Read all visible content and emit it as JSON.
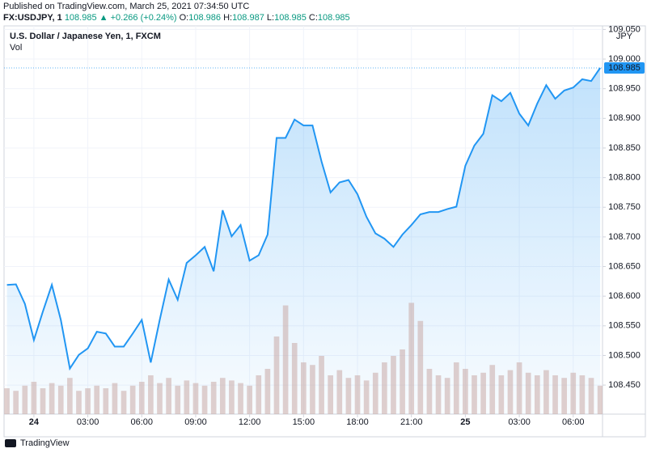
{
  "header": {
    "published": "Published on TradingView.com, March 25, 2021 07:34:50 UTC",
    "symbol": "FX:USDJPY, 1",
    "price": "108.985",
    "arrow": "▲",
    "change": "+0.266 (+0.24%)",
    "o_label": "O:",
    "o": "108.986",
    "h_label": "H:",
    "h": "108.987",
    "l_label": "L:",
    "l": "108.985",
    "c_label": "C:",
    "c": "108.985"
  },
  "chart_data": {
    "type": "area",
    "legend_title": "U.S. Dollar / Japanese Yen, 1, FXCM",
    "currency": "JPY",
    "x": [
      -1.5,
      -1,
      -0.5,
      0,
      0.5,
      1,
      1.5,
      2,
      2.5,
      3,
      3.5,
      4,
      4.5,
      5,
      5.5,
      6,
      6.5,
      7,
      7.5,
      8,
      8.5,
      9,
      9.5,
      10,
      10.5,
      11,
      11.5,
      12,
      12.5,
      13,
      13.5,
      14,
      14.5,
      15,
      15.5,
      16,
      16.5,
      17,
      17.5,
      18,
      18.5,
      19,
      19.5,
      20,
      20.5,
      21,
      21.5,
      22,
      22.5,
      23,
      23.5,
      24,
      24.5,
      25,
      25.5,
      26,
      26.5,
      27,
      27.5,
      28,
      28.5,
      29,
      29.5,
      30,
      30.5,
      31,
      31.5
    ],
    "series": [
      {
        "name": "U.S. Dollar / Japanese Yen",
        "color": "#2196f3",
        "values": [
          108.619,
          108.62,
          108.587,
          108.526,
          108.574,
          108.619,
          108.56,
          108.478,
          108.501,
          108.512,
          108.54,
          108.537,
          108.515,
          108.515,
          108.537,
          108.56,
          108.488,
          108.56,
          108.628,
          108.594,
          108.656,
          108.669,
          108.683,
          108.642,
          108.745,
          108.701,
          108.72,
          108.66,
          108.669,
          108.704,
          108.867,
          108.867,
          108.898,
          108.888,
          108.888,
          108.827,
          108.775,
          108.792,
          108.796,
          108.772,
          108.734,
          108.706,
          108.697,
          108.683,
          108.704,
          108.72,
          108.738,
          108.742,
          108.742,
          108.747,
          108.751,
          108.82,
          108.854,
          108.874,
          108.939,
          108.929,
          108.943,
          108.908,
          108.888,
          108.925,
          108.956,
          108.933,
          108.947,
          108.952,
          108.966,
          108.963,
          108.985
        ]
      },
      {
        "name": "Vol",
        "color": "#c9a9a6",
        "axis": "y2",
        "values": [
          20,
          18,
          22,
          25,
          20,
          24,
          22,
          28,
          18,
          20,
          22,
          20,
          24,
          18,
          22,
          25,
          30,
          24,
          28,
          22,
          26,
          24,
          22,
          25,
          28,
          26,
          24,
          22,
          30,
          35,
          60,
          84,
          55,
          40,
          38,
          45,
          30,
          34,
          28,
          30,
          26,
          32,
          40,
          45,
          50,
          86,
          72,
          35,
          30,
          28,
          40,
          35,
          30,
          32,
          38,
          30,
          34,
          40,
          32,
          30,
          34,
          30,
          28,
          32,
          30,
          28,
          22
        ]
      }
    ],
    "xlim": [
      -1.66,
      31.63
    ],
    "xticks": [
      {
        "value": 0,
        "label": "24"
      },
      {
        "value": 3,
        "label": "03:00"
      },
      {
        "value": 6,
        "label": "06:00"
      },
      {
        "value": 9,
        "label": "09:00"
      },
      {
        "value": 12,
        "label": "12:00"
      },
      {
        "value": 15,
        "label": "15:00"
      },
      {
        "value": 18,
        "label": "18:00"
      },
      {
        "value": 21,
        "label": "21:00"
      },
      {
        "value": 24,
        "label": "25"
      },
      {
        "value": 27,
        "label": "03:00"
      },
      {
        "value": 30,
        "label": "06:00"
      }
    ],
    "ylim": [
      108.401,
      109.056
    ],
    "yticks": [
      {
        "value": 108.45,
        "label": "108.450"
      },
      {
        "value": 108.5,
        "label": "108.500"
      },
      {
        "value": 108.55,
        "label": "108.550"
      },
      {
        "value": 108.6,
        "label": "108.600"
      },
      {
        "value": 108.65,
        "label": "108.650"
      },
      {
        "value": 108.7,
        "label": "108.700"
      },
      {
        "value": 108.75,
        "label": "108.750"
      },
      {
        "value": 108.8,
        "label": "108.800"
      },
      {
        "value": 108.85,
        "label": "108.850"
      },
      {
        "value": 108.9,
        "label": "108.900"
      },
      {
        "value": 108.95,
        "label": "108.950"
      },
      {
        "value": 109,
        "label": "109.000"
      },
      {
        "value": 109.05,
        "label": "109.050"
      }
    ],
    "y2lim": [
      0,
      300
    ],
    "grid": true
  },
  "footer": {
    "brand": "TradingView"
  }
}
